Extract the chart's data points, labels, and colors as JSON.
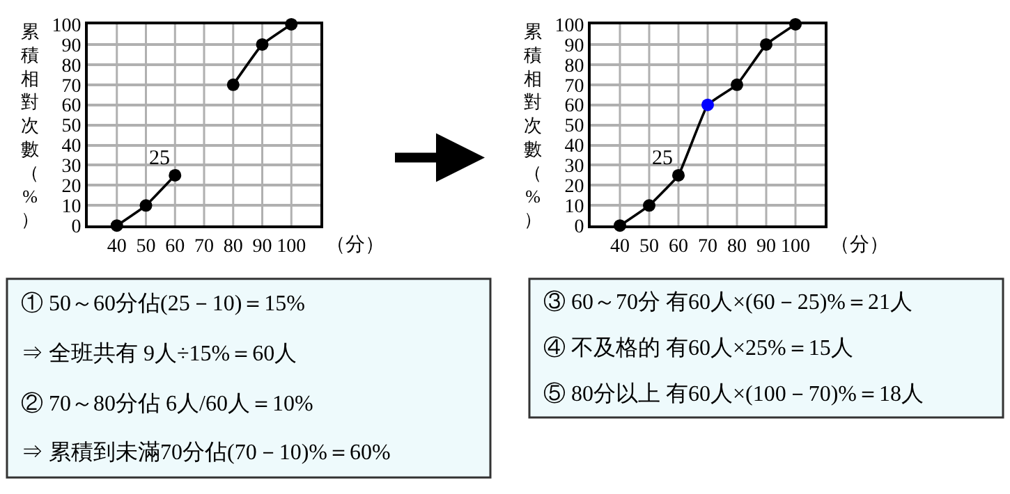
{
  "chart_data": [
    {
      "type": "line",
      "ylabel": "累積相對次數（%）",
      "xlabel": "（分）",
      "x": [
        40,
        50,
        60,
        70,
        80,
        90,
        100
      ],
      "series": [
        {
          "color": "#000000",
          "values": [
            0,
            10,
            25,
            null,
            70,
            90,
            100
          ]
        }
      ],
      "xlim": [
        30,
        110
      ],
      "xticks": [
        40,
        50,
        60,
        70,
        80,
        90,
        100
      ],
      "ylim": [
        0,
        100
      ],
      "yticks": [
        0,
        10,
        20,
        30,
        40,
        50,
        60,
        70,
        80,
        90,
        100
      ],
      "grid": true,
      "marker": "circle",
      "annotations": [
        {
          "text": "25",
          "x": 60,
          "y": 25
        }
      ]
    },
    {
      "type": "line",
      "ylabel": "累積相對次數（%）",
      "xlabel": "（分）",
      "x": [
        40,
        50,
        60,
        70,
        80,
        90,
        100
      ],
      "series": [
        {
          "color": "#000000",
          "colors": [
            "#000000",
            "#000000",
            "#000000",
            "#0000ff",
            "#000000",
            "#000000",
            "#000000"
          ],
          "values": [
            0,
            10,
            25,
            60,
            70,
            90,
            100
          ]
        }
      ],
      "xlim": [
        30,
        110
      ],
      "xticks": [
        40,
        50,
        60,
        70,
        80,
        90,
        100
      ],
      "ylim": [
        0,
        100
      ],
      "yticks": [
        0,
        10,
        20,
        30,
        40,
        50,
        60,
        70,
        80,
        90,
        100
      ],
      "grid": true,
      "marker": "circle",
      "annotations": [
        {
          "text": "25",
          "x": 60,
          "y": 25
        }
      ]
    },
    {
      "type": "other",
      "annotations": [
        "① 50～60分佔(25－10)＝15%",
        "⇒ 全班共有 9人÷15%＝60人",
        "② 70～80分佔 6人/60人＝10%",
        "⇒ 累積到未滿70分佔(70－10)%＝60%"
      ]
    },
    {
      "type": "other",
      "annotations": [
        "③ 60～70分 有60人×(60－25)%＝21人",
        "④ 不及格的 有60人×25%＝15人",
        "⑤ 80分以上 有60人×(100－70)%＝18人"
      ]
    }
  ]
}
